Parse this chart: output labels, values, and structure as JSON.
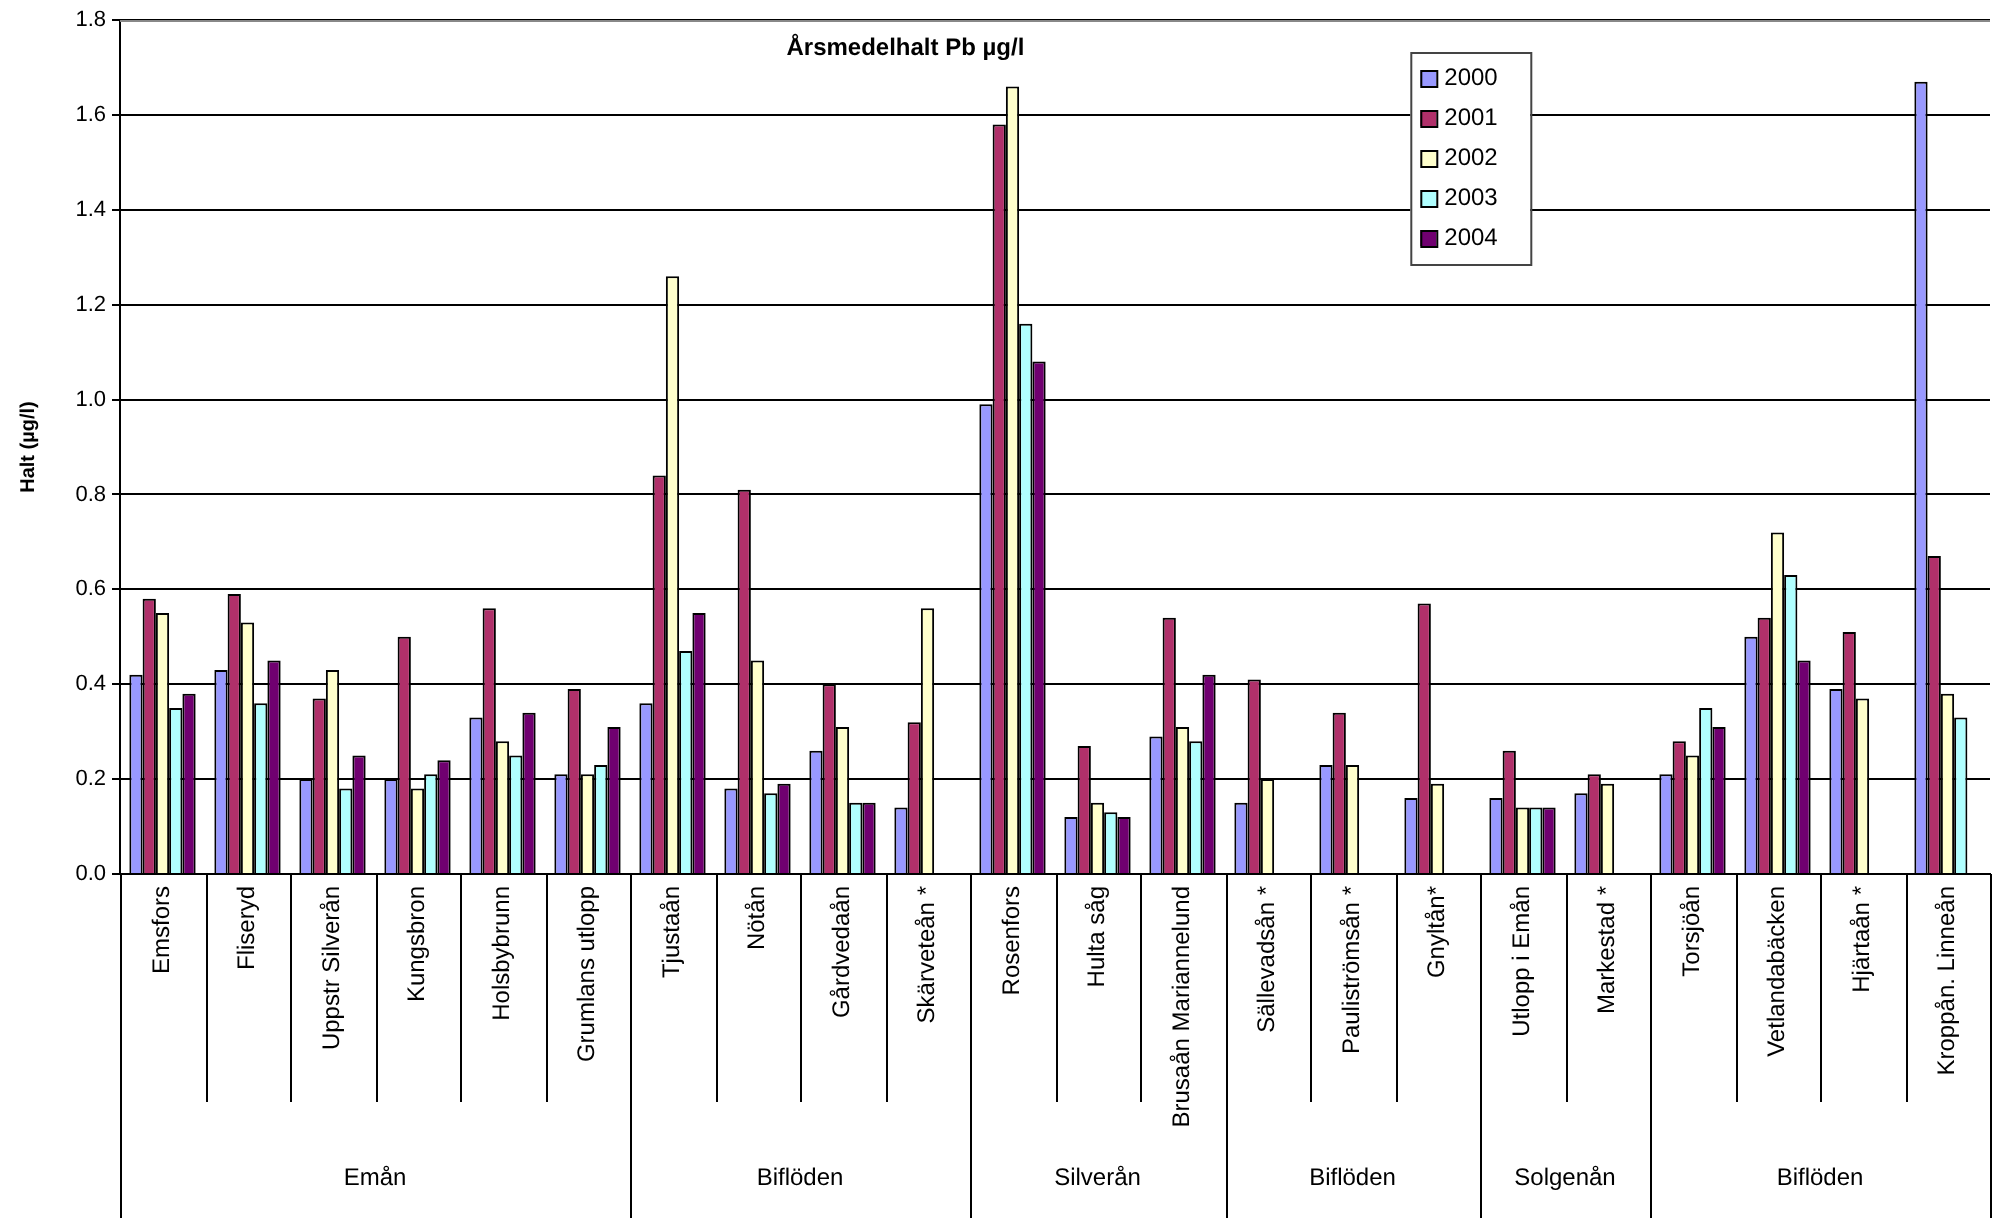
{
  "chart_data": {
    "type": "bar",
    "title": "Årsmedelhalt Pb µg/l",
    "ylabel": "Halt (µg/l)",
    "categories": [
      "Emsfors",
      "Fliseryd",
      "Uppstr Silverån",
      "Kungsbron",
      "Holsbybrunn",
      "Grumlans utlopp",
      "Tjustaån",
      "Nötån",
      "Gårdvedaån",
      "Skärveteån *",
      "Rosenfors",
      "Hulta såg",
      "Brusaån Mariannelund",
      "Sällevadsån *",
      "Pauliströmsån *",
      "Gnyltån*",
      "Utlopp i Emån",
      "Markestad *",
      "Torsjöån",
      "Vetlandabäcken",
      "Hjärtaån *",
      "Kroppån. Linneån"
    ],
    "series": [
      {
        "name": "2000",
        "color": "#9999ff",
        "values": [
          0.42,
          0.43,
          0.2,
          0.2,
          0.33,
          0.21,
          0.36,
          0.18,
          0.26,
          0.14,
          0.99,
          0.12,
          0.29,
          0.15,
          0.23,
          0.16,
          0.16,
          0.17,
          0.21,
          0.5,
          0.39,
          1.67
        ]
      },
      {
        "name": "2001",
        "color": "#b0306a",
        "values": [
          0.58,
          0.59,
          0.37,
          0.5,
          0.56,
          0.39,
          0.84,
          0.81,
          0.4,
          0.32,
          1.58,
          0.27,
          0.54,
          0.41,
          0.34,
          0.57,
          0.26,
          0.21,
          0.28,
          0.54,
          0.51,
          0.67
        ]
      },
      {
        "name": "2002",
        "color": "#ffffcc",
        "values": [
          0.55,
          0.53,
          0.43,
          0.18,
          0.28,
          0.21,
          1.26,
          0.45,
          0.31,
          0.56,
          1.66,
          0.15,
          0.31,
          0.2,
          0.23,
          0.19,
          0.14,
          0.19,
          0.25,
          0.72,
          0.37,
          0.38
        ]
      },
      {
        "name": "2003",
        "color": "#b0ffff",
        "values": [
          0.35,
          0.36,
          0.18,
          0.21,
          0.25,
          0.23,
          0.47,
          0.17,
          0.15,
          null,
          1.16,
          0.13,
          0.28,
          null,
          null,
          null,
          0.14,
          null,
          0.35,
          0.63,
          null,
          0.33
        ]
      },
      {
        "name": "2004",
        "color": "#700070",
        "values": [
          0.38,
          0.45,
          0.25,
          0.24,
          0.34,
          0.31,
          0.55,
          0.19,
          0.15,
          null,
          1.08,
          0.12,
          0.42,
          null,
          null,
          null,
          0.14,
          null,
          0.31,
          0.45,
          null,
          null
        ]
      }
    ],
    "ylim": [
      0,
      1.8
    ],
    "yticks": [
      {
        "value": 0,
        "label": "0.0"
      },
      {
        "value": 0.2,
        "label": "0.2"
      },
      {
        "value": 0.4,
        "label": "0.4"
      },
      {
        "value": 0.6,
        "label": "0.6"
      },
      {
        "value": 0.8,
        "label": "0.8"
      },
      {
        "value": 1.0,
        "label": "1.0"
      },
      {
        "value": 1.2,
        "label": "1.2"
      },
      {
        "value": 1.4,
        "label": "1.4"
      },
      {
        "value": 1.6,
        "label": "1.6"
      },
      {
        "value": 1.8,
        "label": "1.8"
      }
    ],
    "grid": "y",
    "legend": "top right",
    "annotations": [
      "Emån",
      "Biflöden",
      "Silverån",
      "Biflöden",
      "Solgenån",
      "Biflöden"
    ]
  }
}
